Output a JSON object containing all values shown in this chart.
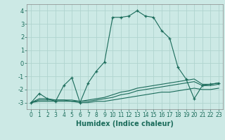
{
  "xlabel": "Humidex (Indice chaleur)",
  "ylabel": "",
  "xlim": [
    -0.5,
    23.5
  ],
  "ylim": [
    -3.5,
    4.5
  ],
  "xticks": [
    0,
    1,
    2,
    3,
    4,
    5,
    6,
    7,
    8,
    9,
    10,
    11,
    12,
    13,
    14,
    15,
    16,
    17,
    18,
    19,
    20,
    21,
    22,
    23
  ],
  "yticks": [
    -3,
    -2,
    -1,
    0,
    1,
    2,
    3,
    4
  ],
  "background_color": "#cce9e5",
  "grid_color": "#b0d4cf",
  "line_color": "#1a6b5a",
  "lines": [
    {
      "x": [
        0,
        1,
        2,
        3,
        4,
        5,
        6,
        7,
        8,
        9,
        10,
        11,
        12,
        13,
        14,
        15,
        16,
        17,
        18,
        19,
        20,
        21,
        22,
        23
      ],
      "y": [
        -3.0,
        -2.3,
        -2.7,
        -2.9,
        -1.7,
        -1.1,
        -3.0,
        -1.5,
        -0.6,
        0.1,
        3.5,
        3.5,
        3.6,
        4.0,
        3.6,
        3.5,
        2.5,
        1.9,
        -0.3,
        -1.2,
        -2.7,
        -1.7,
        -1.6,
        -1.5
      ],
      "marker": "+"
    },
    {
      "x": [
        0,
        1,
        2,
        3,
        4,
        5,
        6,
        7,
        8,
        9,
        10,
        11,
        12,
        13,
        14,
        15,
        16,
        17,
        18,
        19,
        20,
        21,
        22,
        23
      ],
      "y": [
        -3.0,
        -2.7,
        -2.7,
        -2.8,
        -2.8,
        -2.8,
        -2.9,
        -2.8,
        -2.7,
        -2.6,
        -2.4,
        -2.2,
        -2.1,
        -1.9,
        -1.8,
        -1.7,
        -1.6,
        -1.5,
        -1.4,
        -1.3,
        -1.2,
        -1.6,
        -1.6,
        -1.5
      ],
      "marker": null
    },
    {
      "x": [
        0,
        1,
        2,
        3,
        4,
        5,
        6,
        7,
        8,
        9,
        10,
        11,
        12,
        13,
        14,
        15,
        16,
        17,
        18,
        19,
        20,
        21,
        22,
        23
      ],
      "y": [
        -3.0,
        -2.8,
        -2.8,
        -2.8,
        -2.8,
        -2.9,
        -2.9,
        -2.9,
        -2.8,
        -2.7,
        -2.6,
        -2.4,
        -2.3,
        -2.1,
        -2.0,
        -1.9,
        -1.8,
        -1.7,
        -1.6,
        -1.5,
        -1.4,
        -1.7,
        -1.7,
        -1.6
      ],
      "marker": null
    },
    {
      "x": [
        0,
        1,
        2,
        3,
        4,
        5,
        6,
        7,
        8,
        9,
        10,
        11,
        12,
        13,
        14,
        15,
        16,
        17,
        18,
        19,
        20,
        21,
        22,
        23
      ],
      "y": [
        -3.0,
        -2.9,
        -2.9,
        -2.9,
        -2.9,
        -2.9,
        -3.0,
        -3.0,
        -2.9,
        -2.9,
        -2.8,
        -2.7,
        -2.6,
        -2.5,
        -2.4,
        -2.3,
        -2.2,
        -2.2,
        -2.1,
        -2.0,
        -1.9,
        -2.0,
        -2.0,
        -1.9
      ],
      "marker": null
    }
  ]
}
